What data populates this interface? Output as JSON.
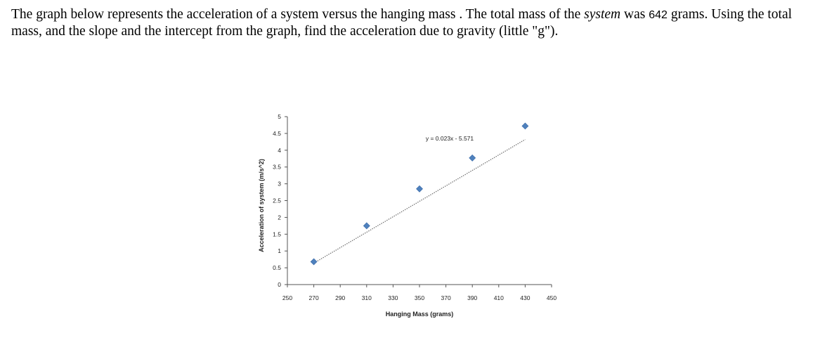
{
  "question": {
    "part1": "The graph below represents the acceleration of a system versus the hanging mass . The total mass  of the ",
    "emph": "system",
    "part2": " was ",
    "mass_value": "642",
    "part3": " grams. Using the total mass, and the slope and the intercept from the graph, find the acceleration due to gravity (little \"g\")."
  },
  "chart_data": {
    "type": "scatter",
    "title": "",
    "xlabel": "Hanging Mass (grams)",
    "ylabel": "Acceleration of system (m/s^2)",
    "xlim": [
      250,
      450
    ],
    "ylim": [
      0,
      5
    ],
    "xticks": [
      "250",
      "270",
      "290",
      "310",
      "330",
      "350",
      "370",
      "390",
      "410",
      "430",
      "450"
    ],
    "yticks": [
      "0",
      "0.5",
      "1",
      "1.5",
      "2",
      "2.5",
      "3",
      "3.5",
      "4",
      "4.5",
      "5"
    ],
    "points": [
      {
        "x": 270,
        "y": 0.68
      },
      {
        "x": 310,
        "y": 1.75
      },
      {
        "x": 350,
        "y": 2.85
      },
      {
        "x": 390,
        "y": 3.77
      },
      {
        "x": 430,
        "y": 4.72
      }
    ],
    "trendline": {
      "slope": 0.023,
      "intercept": -5.571,
      "x_range": [
        270,
        430
      ],
      "style": "dotted"
    },
    "annotation": "y = 0.023x - 5.571",
    "grid": false,
    "legend": "none",
    "marker_color": "#4f81bd"
  }
}
